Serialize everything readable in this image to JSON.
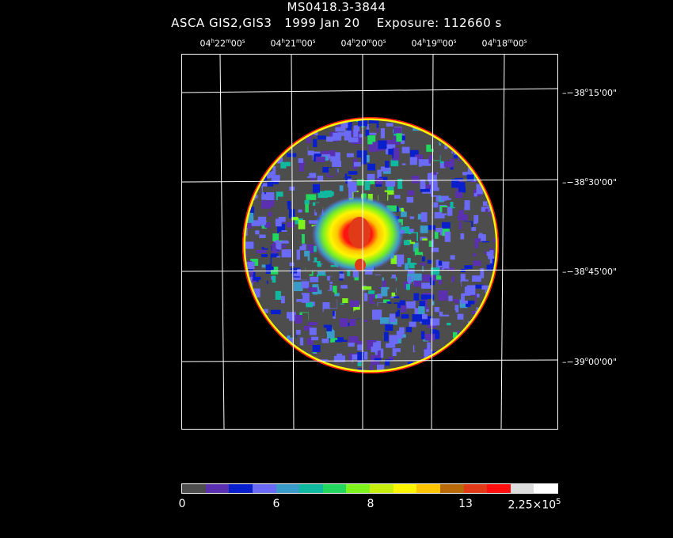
{
  "header": {
    "title_line1": "MS0418.3-3844",
    "title_line2": "ASCA GIS2,GIS3   1999 Jan 20    Exposure: 112660 s"
  },
  "ra_labels": [
    {
      "h": "04",
      "m": "22",
      "s": "00"
    },
    {
      "h": "04",
      "m": "21",
      "s": "00"
    },
    {
      "h": "04",
      "m": "20",
      "s": "00"
    },
    {
      "h": "04",
      "m": "19",
      "s": "00"
    },
    {
      "h": "04",
      "m": "18",
      "s": "00"
    }
  ],
  "dec_labels": [
    {
      "d": "−38",
      "m": "15",
      "s": "00"
    },
    {
      "d": "−38",
      "m": "30",
      "s": "00"
    },
    {
      "d": "−38",
      "m": "45",
      "s": "00"
    },
    {
      "d": "−39",
      "m": "00",
      "s": "00"
    }
  ],
  "colorbar": {
    "colors": [
      "#4d4d4d",
      "#5a2fb0",
      "#0a1fcc",
      "#6a6af5",
      "#3a9ac8",
      "#10b8a0",
      "#22d660",
      "#7ef21c",
      "#c8ee10",
      "#fff500",
      "#ffc400",
      "#b86a08",
      "#e03a18",
      "#ff1010",
      "#dcdcdc",
      "#ffffff"
    ],
    "labels": {
      "l0": "0",
      "l6": "6",
      "l8": "8",
      "l13": "13",
      "lmax_base": "2.25×10",
      "lmax_exp": "5"
    }
  }
}
